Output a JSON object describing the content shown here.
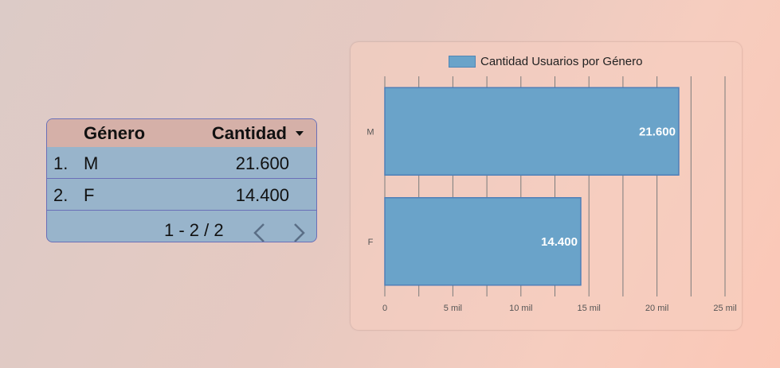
{
  "table": {
    "headers": {
      "label": "Género",
      "value": "Cantidad"
    },
    "rows": [
      {
        "index": "1.",
        "label": "M",
        "value": "21.600"
      },
      {
        "index": "2.",
        "label": "F",
        "value": "14.400"
      }
    ],
    "pagination": "1 - 2 / 2",
    "colors": {
      "header_bg": "#d5b0a8",
      "body_bg": "#98b4cb",
      "border": "#6a6fb8"
    }
  },
  "chart_data": {
    "type": "bar",
    "orientation": "horizontal",
    "categories": [
      "M",
      "F"
    ],
    "series": [
      {
        "name": "Cantidad Usuarios por Género",
        "values": [
          21600,
          14400
        ],
        "color": "#6aa3c9"
      }
    ],
    "data_labels": [
      "21.600",
      "14.400"
    ],
    "x_ticks": [
      0,
      5000,
      10000,
      15000,
      20000,
      25000
    ],
    "x_tick_labels": [
      "0",
      "5 mil",
      "10 mil",
      "15 mil",
      "20 mil",
      "25 mil"
    ],
    "xlim": [
      0,
      25000
    ],
    "grid": true,
    "legend": "top"
  }
}
